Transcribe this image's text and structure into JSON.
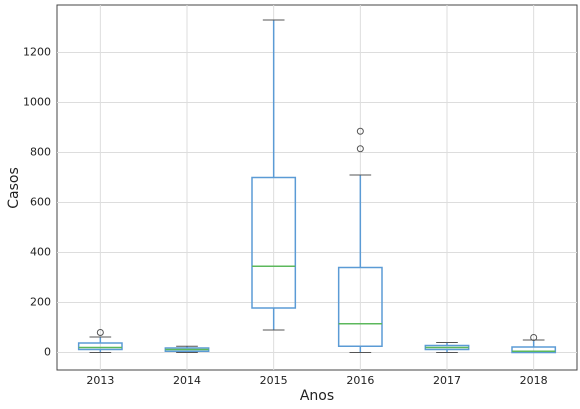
{
  "chart_data": {
    "type": "box",
    "x_label": "Anos",
    "y_label": "Casos",
    "categories": [
      "2013",
      "2014",
      "2015",
      "2016",
      "2017",
      "2018"
    ],
    "boxes": [
      {
        "min": 0,
        "q1": 12,
        "median": 20,
        "q3": 38,
        "max": 62,
        "outliers": [
          80
        ]
      },
      {
        "min": 0,
        "q1": 5,
        "median": 12,
        "q3": 18,
        "max": 25,
        "outliers": []
      },
      {
        "min": 90,
        "q1": 178,
        "median": 345,
        "q3": 700,
        "max": 1330,
        "outliers": []
      },
      {
        "min": 0,
        "q1": 25,
        "median": 115,
        "q3": 340,
        "max": 710,
        "outliers": [
          815,
          885
        ]
      },
      {
        "min": 0,
        "q1": 12,
        "median": 20,
        "q3": 28,
        "max": 40,
        "outliers": []
      },
      {
        "min": 0,
        "q1": 0,
        "median": 5,
        "q3": 22,
        "max": 50,
        "outliers": [
          60
        ]
      }
    ],
    "box_color": "#5b9bd5",
    "median_color": "#5cb85c",
    "ylim": [
      -70,
      1390
    ],
    "yticks": [
      0,
      200,
      400,
      600,
      800,
      1000,
      1200
    ],
    "grid": true
  }
}
